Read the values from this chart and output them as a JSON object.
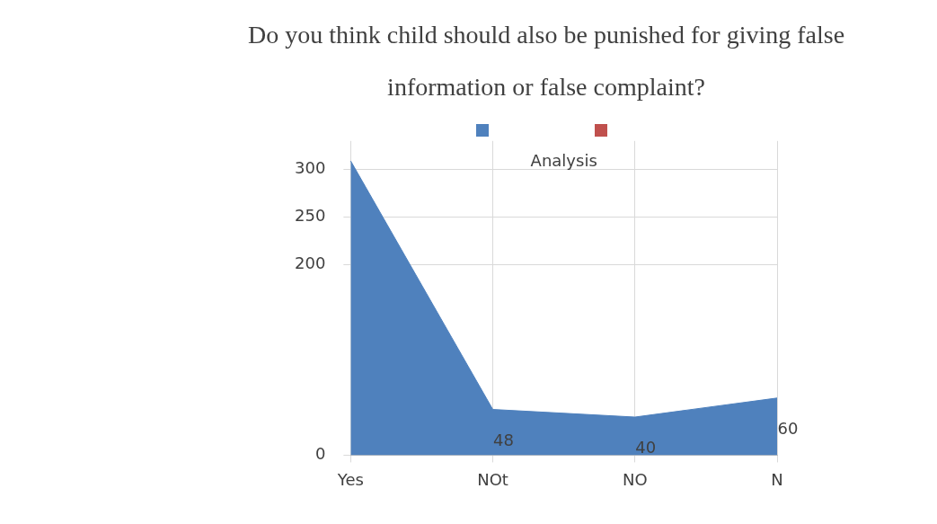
{
  "chart_data": {
    "type": "area",
    "title": "Do you think child should also be punished for giving false information or false complaint?",
    "annotations": [
      "Analysis"
    ],
    "categories": [
      "Yes",
      "NOt",
      "NO",
      "N"
    ],
    "series": [
      {
        "color": "#4f81bd",
        "values": [
          309,
          48,
          40,
          60
        ],
        "value_labels": [
          null,
          "48",
          "40",
          "60"
        ]
      }
    ],
    "ylim": [
      0,
      330
    ],
    "yticks": [
      0,
      200,
      250,
      300
    ],
    "grid": true,
    "marker": "none"
  }
}
